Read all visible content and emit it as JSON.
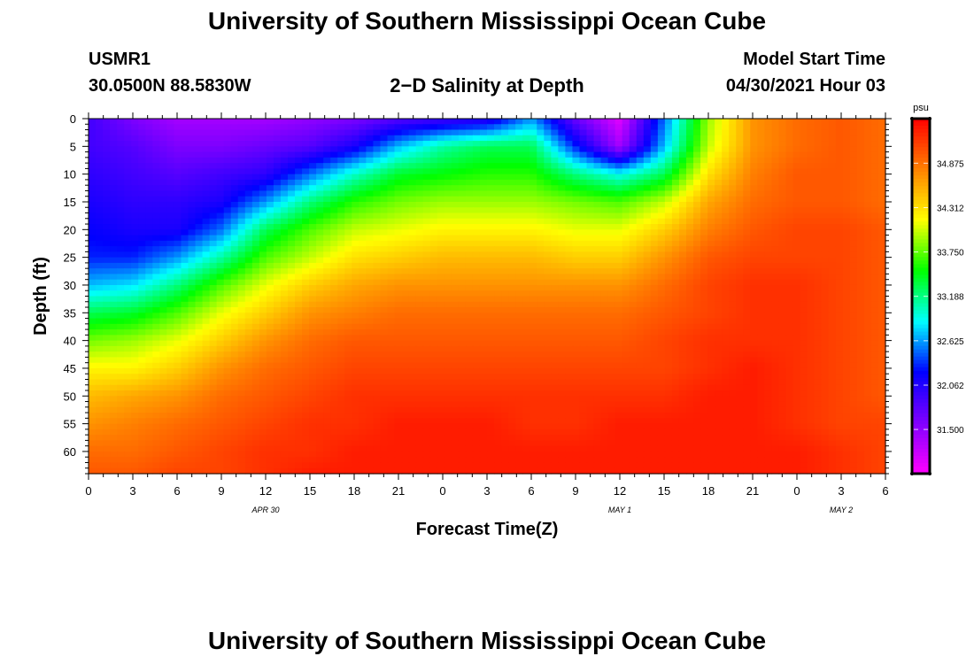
{
  "page": {
    "title_top": "University of Southern Mississippi Ocean Cube",
    "title_bottom": "University of Southern Mississippi Ocean Cube",
    "station_id": "USMR1",
    "station_coords": "30.0500N  88.5830W",
    "plot_title": "2−D Salinity at Depth",
    "model_start_label": "Model Start Time",
    "model_start_value": "04/30/2021 Hour 03"
  },
  "colors": {
    "colormap": [
      "#ff00ff",
      "#8000ff",
      "#0000ff",
      "#00ffff",
      "#00ff00",
      "#ffff00",
      "#ff8000",
      "#ff0000"
    ],
    "colorbar_border": "#000000"
  },
  "chart_data": {
    "type": "heatmap",
    "title": "2−D Salinity at Depth",
    "xlabel": "Forecast Time(Z)",
    "ylabel": "Depth (ft)",
    "x_hours": [
      0,
      3,
      6,
      9,
      12,
      15,
      18,
      21,
      24,
      27,
      30,
      33,
      36,
      39,
      42,
      45,
      48,
      51,
      54
    ],
    "x_tick_labels": [
      "0",
      "3",
      "6",
      "9",
      "12",
      "15",
      "18",
      "21",
      "0",
      "3",
      "6",
      "9",
      "12",
      "15",
      "18",
      "21",
      "0",
      "3",
      "6"
    ],
    "date_labels": [
      {
        "hour": 12,
        "label": "APR 30"
      },
      {
        "hour": 36,
        "label": "MAY 1"
      },
      {
        "hour": 51,
        "label": "MAY 2"
      }
    ],
    "xlim": [
      0,
      54
    ],
    "y_ticks": [
      0,
      5,
      10,
      15,
      20,
      25,
      30,
      35,
      40,
      45,
      50,
      55,
      60
    ],
    "ylim": [
      0,
      64
    ],
    "y_inverted": true,
    "colorbar": {
      "unit": "psu",
      "min": 30.94,
      "max": 35.44,
      "ticks": [
        31.5,
        32.062,
        32.625,
        33.188,
        33.75,
        34.312,
        34.875
      ],
      "tick_labels": [
        "31.500",
        "32.062",
        "32.625",
        "33.188",
        "33.750",
        "34.312",
        "34.875"
      ]
    },
    "depths": [
      0,
      5,
      10,
      15,
      20,
      25,
      30,
      35,
      40,
      45,
      50,
      55,
      60,
      64
    ],
    "salinity_psu": [
      [
        31.9,
        31.6,
        31.4,
        31.4,
        31.4,
        31.5,
        31.6,
        31.8,
        31.9,
        32.0,
        32.6,
        31.7,
        31.1,
        32.5,
        33.9,
        34.7,
        34.9,
        35.0,
        34.9
      ],
      [
        31.9,
        31.8,
        31.6,
        31.6,
        31.7,
        31.8,
        32.1,
        32.7,
        33.1,
        33.3,
        33.3,
        32.3,
        31.4,
        32.7,
        34.0,
        34.7,
        34.9,
        35.0,
        34.9
      ],
      [
        32.0,
        31.9,
        31.8,
        31.9,
        32.0,
        32.5,
        33.0,
        33.4,
        33.5,
        33.6,
        33.6,
        33.2,
        32.9,
        33.3,
        34.3,
        34.8,
        35.0,
        35.0,
        34.9
      ],
      [
        32.1,
        32.0,
        32.0,
        32.1,
        32.6,
        33.2,
        33.6,
        33.8,
        33.9,
        33.9,
        33.9,
        33.8,
        33.7,
        34.0,
        34.6,
        34.9,
        35.0,
        35.0,
        34.9
      ],
      [
        32.2,
        32.1,
        32.1,
        32.5,
        33.3,
        33.7,
        34.0,
        34.1,
        34.2,
        34.2,
        34.2,
        34.1,
        34.1,
        34.4,
        34.8,
        35.0,
        35.1,
        35.1,
        35.0
      ],
      [
        32.3,
        32.3,
        32.6,
        33.1,
        33.7,
        34.0,
        34.3,
        34.4,
        34.5,
        34.5,
        34.5,
        34.4,
        34.4,
        34.7,
        35.0,
        35.1,
        35.1,
        35.1,
        35.0
      ],
      [
        32.7,
        32.8,
        33.2,
        33.7,
        34.1,
        34.4,
        34.6,
        34.7,
        34.7,
        34.7,
        34.7,
        34.7,
        34.7,
        34.9,
        35.1,
        35.2,
        35.2,
        35.1,
        35.0
      ],
      [
        33.3,
        33.4,
        33.7,
        34.1,
        34.4,
        34.7,
        34.8,
        34.9,
        34.9,
        34.9,
        34.9,
        34.9,
        34.9,
        35.0,
        35.1,
        35.2,
        35.2,
        35.1,
        35.0
      ],
      [
        33.8,
        33.9,
        34.1,
        34.4,
        34.7,
        34.9,
        35.0,
        35.0,
        35.0,
        35.0,
        35.0,
        35.0,
        35.0,
        35.1,
        35.2,
        35.2,
        35.2,
        35.1,
        35.0
      ],
      [
        34.2,
        34.2,
        34.4,
        34.7,
        34.9,
        35.0,
        35.1,
        35.1,
        35.1,
        35.1,
        35.1,
        35.1,
        35.1,
        35.1,
        35.2,
        35.3,
        35.2,
        35.1,
        35.0
      ],
      [
        34.5,
        34.6,
        34.7,
        34.9,
        35.0,
        35.1,
        35.2,
        35.2,
        35.2,
        35.2,
        35.2,
        35.2,
        35.2,
        35.2,
        35.3,
        35.3,
        35.2,
        35.1,
        35.0
      ],
      [
        34.7,
        34.8,
        34.9,
        35.0,
        35.1,
        35.2,
        35.2,
        35.3,
        35.3,
        35.3,
        35.2,
        35.2,
        35.3,
        35.3,
        35.3,
        35.3,
        35.2,
        35.1,
        35.1
      ],
      [
        34.9,
        34.9,
        35.0,
        35.1,
        35.2,
        35.2,
        35.3,
        35.3,
        35.3,
        35.3,
        35.3,
        35.3,
        35.3,
        35.3,
        35.3,
        35.3,
        35.3,
        35.2,
        35.1
      ],
      [
        35.0,
        35.0,
        35.1,
        35.1,
        35.2,
        35.3,
        35.3,
        35.3,
        35.3,
        35.3,
        35.3,
        35.3,
        35.3,
        35.3,
        35.3,
        35.3,
        35.3,
        35.2,
        35.1
      ]
    ]
  }
}
